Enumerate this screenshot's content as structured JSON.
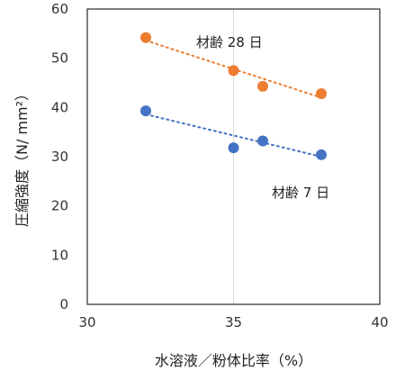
{
  "chart_data": {
    "type": "scatter",
    "title": "",
    "xlabel": "水溶液／粉体比率（%）",
    "ylabel": "圧縮強度（N/ mm²）",
    "xlim": [
      30,
      40
    ],
    "ylim": [
      0,
      60
    ],
    "x_ticks": [
      30,
      35,
      40
    ],
    "y_ticks": [
      0,
      10,
      20,
      30,
      40,
      50,
      60
    ],
    "grid": "vertical",
    "legend": "none",
    "series": [
      {
        "name": "材齢 28 日",
        "color": "#ED7D31",
        "x": [
          32,
          35,
          36,
          38
        ],
        "y": [
          54.2,
          47.5,
          44.3,
          42.8
        ],
        "trendline": {
          "from": [
            32,
            53.6
          ],
          "to": [
            38,
            42.0
          ]
        }
      },
      {
        "name": "材齢 7 日",
        "color": "#4472C4",
        "x": [
          32,
          35,
          36,
          38
        ],
        "y": [
          39.3,
          31.8,
          33.2,
          30.4
        ],
        "trendline": {
          "from": [
            32,
            38.6
          ],
          "to": [
            38,
            30.0
          ]
        }
      }
    ],
    "annotations": [
      "材齢 28 日",
      "材齢 7 日"
    ]
  }
}
